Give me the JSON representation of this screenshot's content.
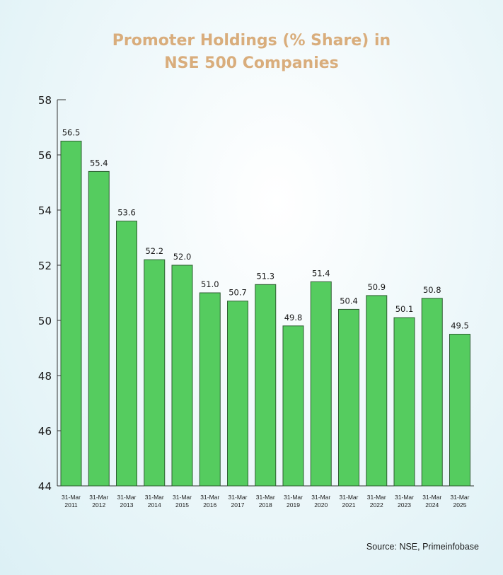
{
  "chart_data": {
    "type": "bar",
    "title_line1": "Promoter Holdings (% Share) in",
    "title_line2": "NSE 500 Companies",
    "categories": [
      [
        "31-Mar",
        "2011"
      ],
      [
        "31-Mar",
        "2012"
      ],
      [
        "31-Mar",
        "2013"
      ],
      [
        "31-Mar",
        "2014"
      ],
      [
        "31-Mar",
        "2015"
      ],
      [
        "31-Mar",
        "2016"
      ],
      [
        "31-Mar",
        "2017"
      ],
      [
        "31-Mar",
        "2018"
      ],
      [
        "31-Mar",
        "2019"
      ],
      [
        "31-Mar",
        "2020"
      ],
      [
        "31-Mar",
        "2021"
      ],
      [
        "31-Mar",
        "2022"
      ],
      [
        "31-Mar",
        "2023"
      ],
      [
        "31-Mar",
        "2024"
      ],
      [
        "31-Mar",
        "2025"
      ]
    ],
    "values": [
      56.5,
      55.4,
      53.6,
      52.2,
      52.0,
      51.0,
      50.7,
      51.3,
      49.8,
      51.4,
      50.4,
      50.9,
      50.1,
      50.8,
      49.5
    ],
    "value_labels": [
      "56.5",
      "55.4",
      "53.6",
      "52.2",
      "52.0",
      "51.0",
      "50.7",
      "51.3",
      "49.8",
      "51.4",
      "50.4",
      "50.9",
      "50.1",
      "50.8",
      "49.5"
    ],
    "ylim": [
      44,
      58
    ],
    "yticks": [
      44,
      46,
      48,
      50,
      52,
      54,
      56,
      58
    ],
    "xlabel": "",
    "ylabel": "",
    "bar_color": "#55cc5f",
    "bar_edge_color": "#2f5e33",
    "title_color": "#d9ad7c",
    "grid": false,
    "legend": "none"
  },
  "source": "Source: NSE, Primeinfobase"
}
